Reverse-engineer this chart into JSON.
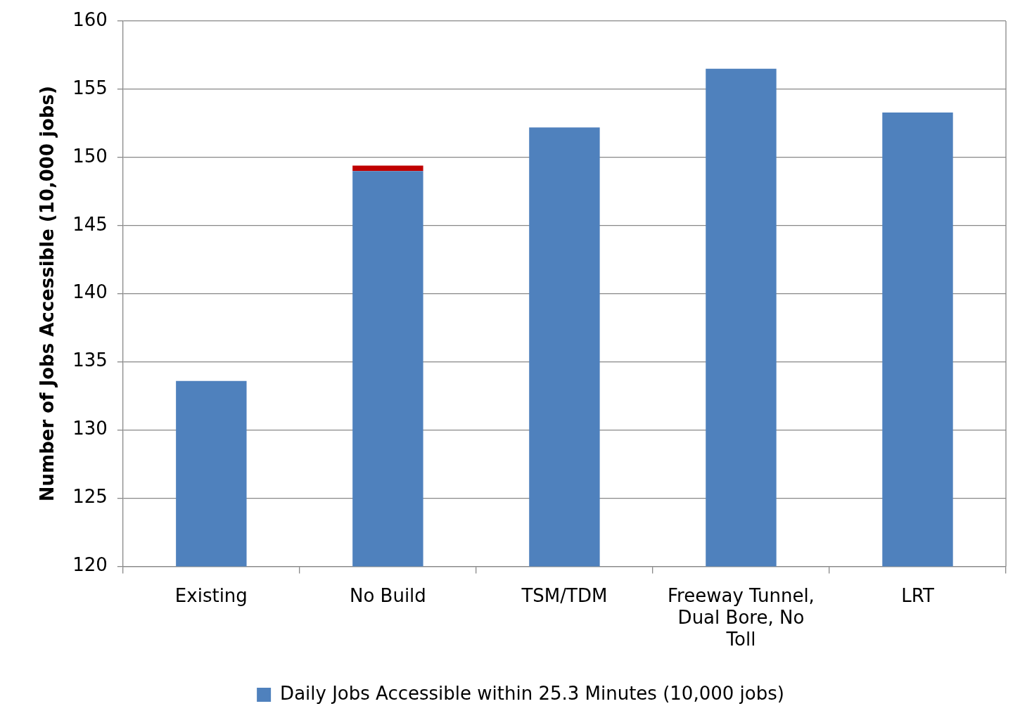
{
  "chart_data": {
    "type": "bar",
    "ylabel": "Number of Jobs Accessible (10,000 jobs)",
    "categories": [
      "Existing",
      "No Build",
      "TSM/TDM",
      "Freeway Tunnel, Dual Bore, No Toll",
      "LRT"
    ],
    "series": [
      {
        "name": "Daily Jobs Accessible within 25.3 Minutes (10,000 jobs)",
        "color": "#4f81bd",
        "values": [
          133.6,
          149.0,
          152.2,
          156.5,
          153.3
        ]
      },
      {
        "color": "#c00000",
        "base": [
          null,
          149.0,
          null,
          null,
          null
        ],
        "values": [
          null,
          0.4,
          null,
          null,
          null
        ]
      }
    ],
    "ylim": [
      120,
      160
    ],
    "yticks": [
      120,
      125,
      130,
      135,
      140,
      145,
      150,
      155,
      160
    ],
    "grid": "y",
    "legend": "bottom"
  }
}
